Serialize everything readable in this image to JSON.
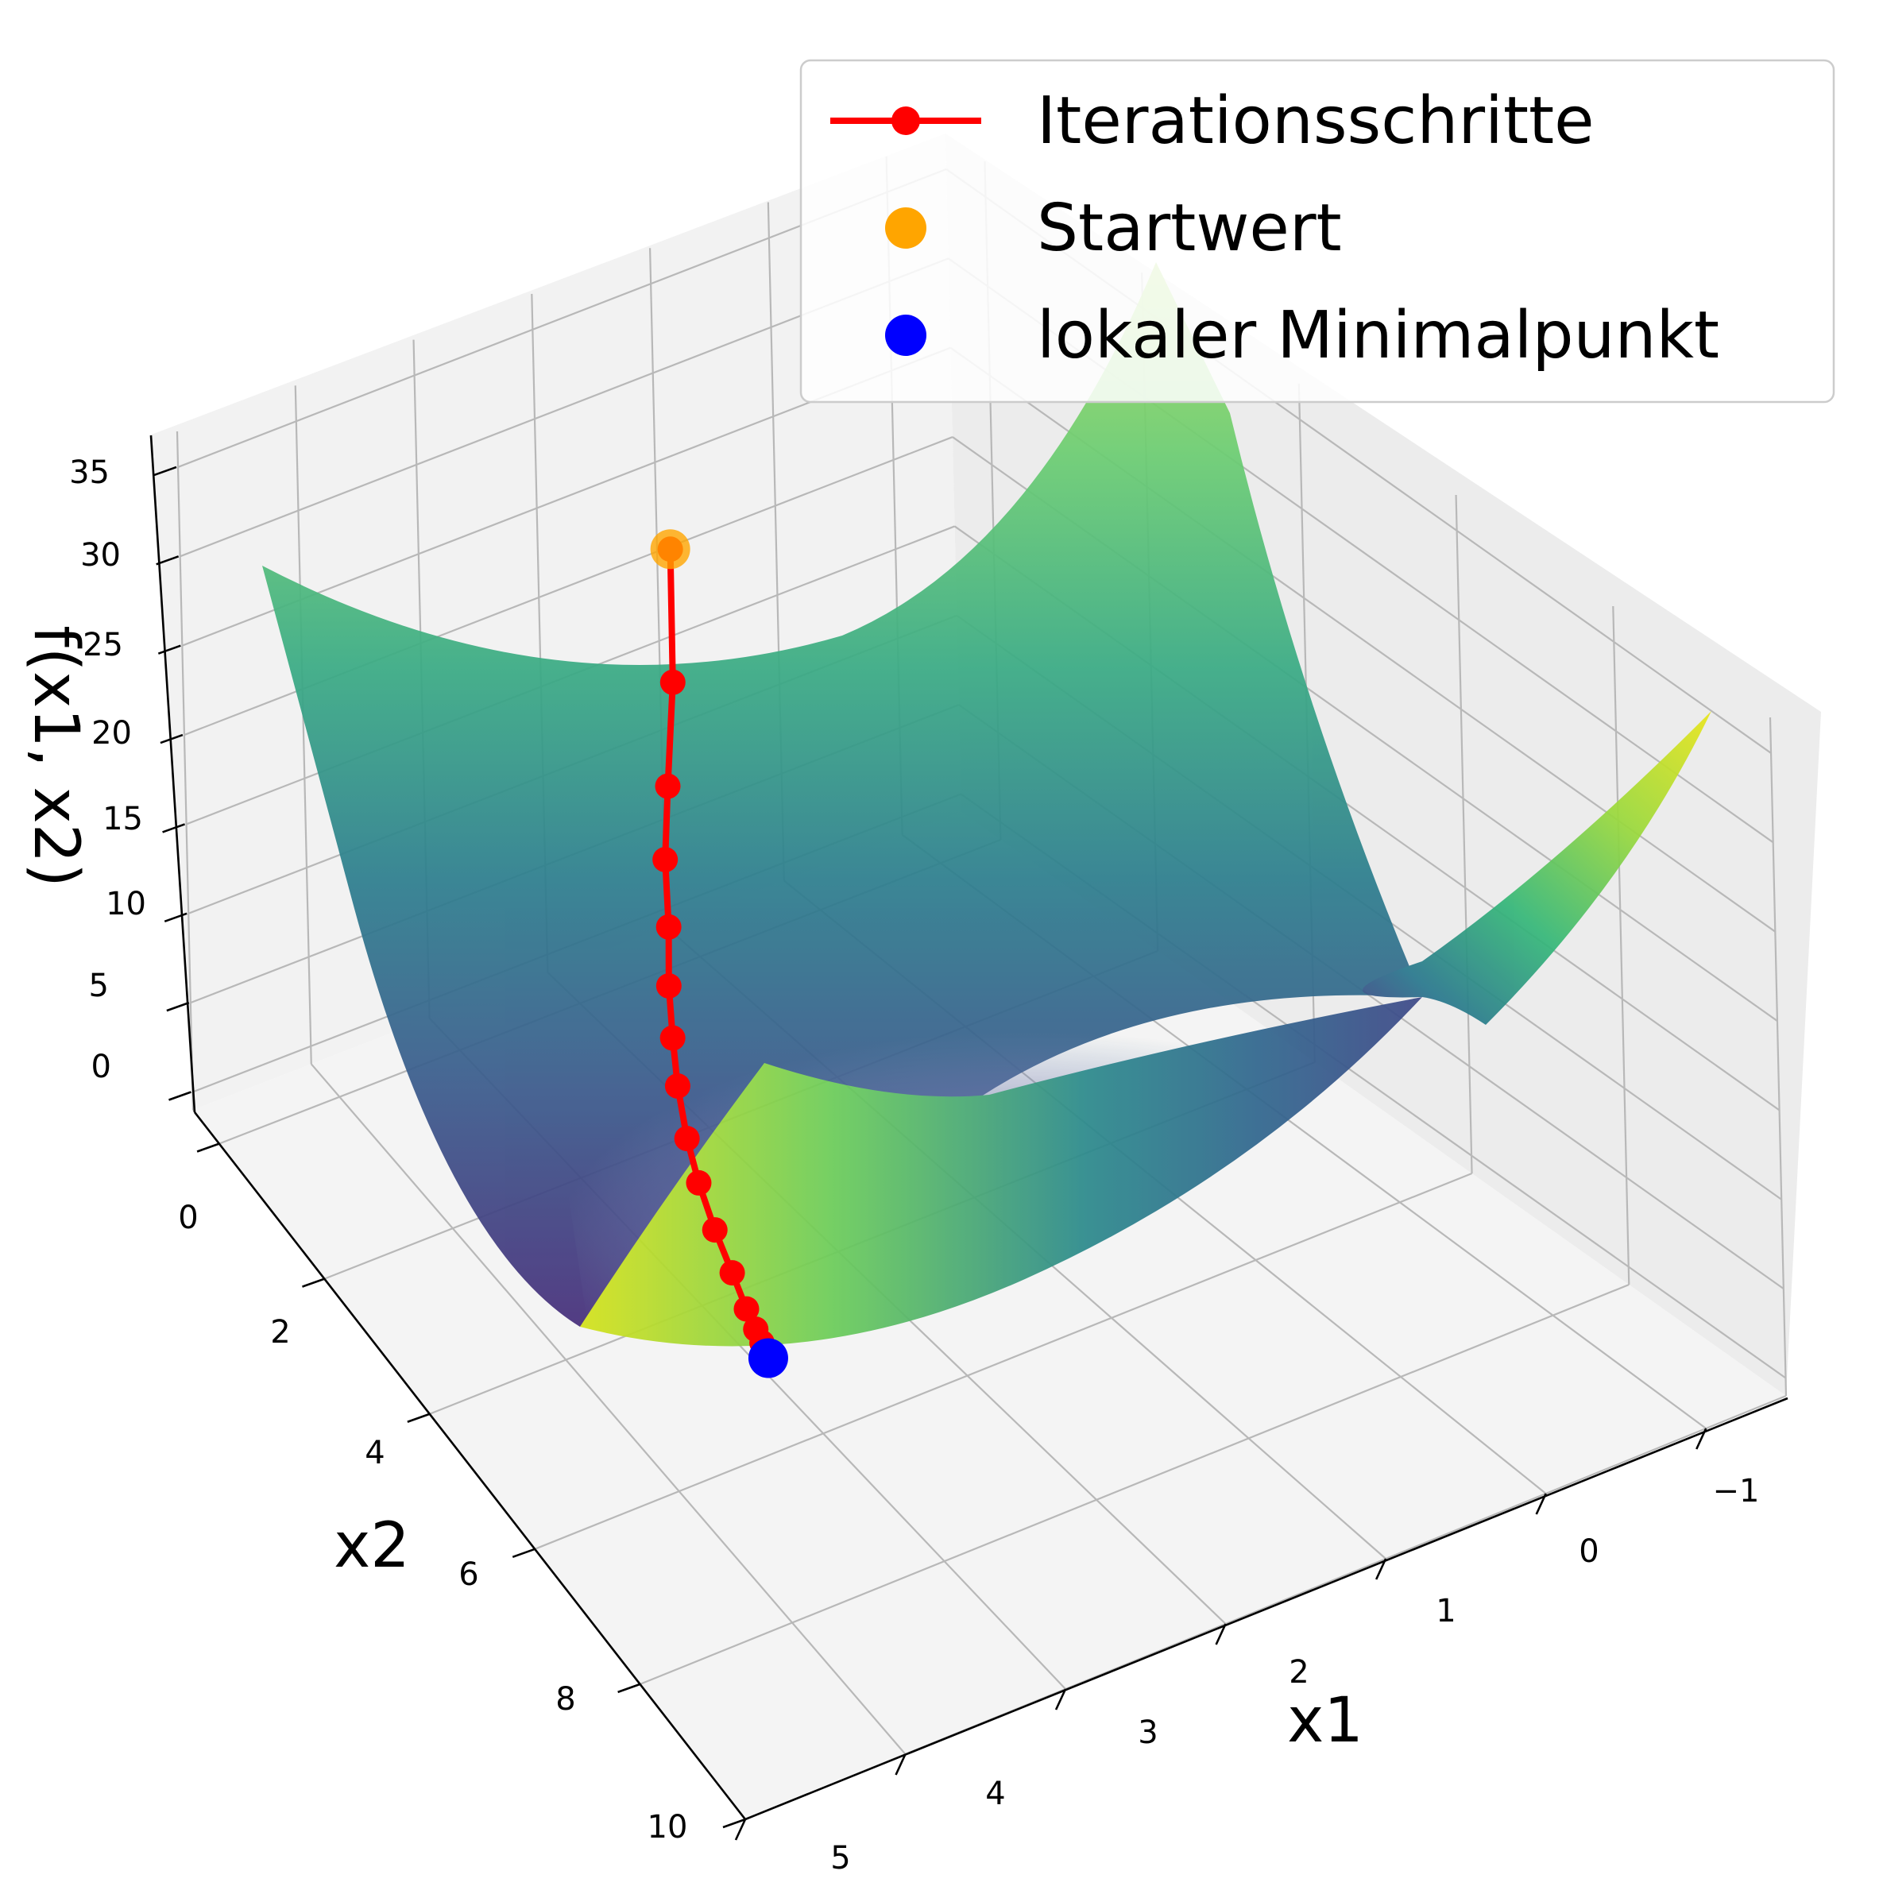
{
  "chart_data": {
    "type": "surface3d",
    "title": "",
    "xlabel": "x1",
    "ylabel": "x2",
    "zlabel": "f(x1, x2)",
    "x_ticks": [
      "−1",
      "0",
      "1",
      "2",
      "3",
      "4",
      "5"
    ],
    "y_ticks": [
      "0",
      "2",
      "4",
      "6",
      "8",
      "10"
    ],
    "z_ticks": [
      "0",
      "5",
      "10",
      "15",
      "20",
      "25",
      "30",
      "35"
    ],
    "xlim": [
      -1.5,
      5
    ],
    "ylim": [
      -0.5,
      10
    ],
    "zlim": [
      -1,
      37
    ],
    "surface": {
      "colormap": "viridis",
      "z_min": 0,
      "z_max": 36,
      "shape": "parabolic valley in x2, quadratic in x1"
    },
    "series": [
      {
        "name": "Iterationsschritte",
        "color": "#ff0000",
        "style": "line-marker",
        "points": [
          {
            "x1": 2.0,
            "x2": 1.6,
            "z": 30.0
          },
          {
            "x1": 2.2,
            "x2": 2.0,
            "z": 24.5
          },
          {
            "x1": 2.4,
            "x2": 2.3,
            "z": 20.3
          },
          {
            "x1": 2.55,
            "x2": 2.55,
            "z": 17.5
          },
          {
            "x1": 2.65,
            "x2": 2.8,
            "z": 14.9
          },
          {
            "x1": 2.75,
            "x2": 3.0,
            "z": 12.6
          },
          {
            "x1": 2.82,
            "x2": 3.2,
            "z": 10.6
          },
          {
            "x1": 2.88,
            "x2": 3.4,
            "z": 8.8
          },
          {
            "x1": 2.93,
            "x2": 3.65,
            "z": 6.9
          },
          {
            "x1": 2.96,
            "x2": 3.9,
            "z": 5.4
          },
          {
            "x1": 2.98,
            "x2": 4.2,
            "z": 3.9
          },
          {
            "x1": 2.99,
            "x2": 4.5,
            "z": 2.6
          },
          {
            "x1": 3.0,
            "x2": 4.75,
            "z": 1.5
          },
          {
            "x1": 3.0,
            "x2": 4.9,
            "z": 0.9
          },
          {
            "x1": 3.0,
            "x2": 5.0,
            "z": 0.5
          },
          {
            "x1": 3.0,
            "x2": 5.05,
            "z": 0.2
          }
        ]
      },
      {
        "name": "Startwert",
        "color": "#ffa500",
        "style": "marker",
        "points": [
          {
            "x1": 2.0,
            "x2": 1.6,
            "z": 30.0
          }
        ]
      },
      {
        "name": "lokaler Minimalpunkt",
        "color": "#0000ff",
        "style": "marker",
        "points": [
          {
            "x1": 3.0,
            "x2": 5.1,
            "z": 0.0
          }
        ]
      }
    ],
    "legend": {
      "placement": "top-right",
      "entries": [
        "Iterationsschritte",
        "Startwert",
        "lokaler Minimalpunkt"
      ]
    },
    "grid": true
  }
}
